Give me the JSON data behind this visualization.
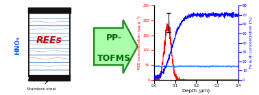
{
  "xlabel": "Depth (μm)",
  "ylabel_left": "REE concentration (μg·g⁻¹)",
  "ylabel_right": "Fe & Ni concentration (%)",
  "arrow_label_line1": "PP-",
  "arrow_label_line2": "TOFMS",
  "hno3_text": "HNO₃",
  "rees_text": "REEs",
  "steel_text": "Stainless steel",
  "xlim": [
    0,
    0.4
  ],
  "ylim_left": [
    0,
    250
  ],
  "ylim_right": [
    0,
    80
  ],
  "yticks_left": [
    0,
    50,
    100,
    150,
    200,
    250
  ],
  "yticks_right": [
    0,
    10,
    20,
    30,
    40,
    50,
    60,
    70,
    80
  ],
  "xticks": [
    0,
    0.1,
    0.2,
    0.3,
    0.4
  ],
  "red_color": "#FF0000",
  "blue_color": "#0000FF",
  "light_blue_color": "#4488FF",
  "arrow_fill": "#AAFFAA",
  "arrow_edge": "#228B22",
  "liquid_color": "#5588BB",
  "hno3_color": "#0055FF",
  "rees_color": "#CC0000",
  "steel_color": "#111111",
  "beaker_edge": "#222222",
  "beaker_fill": "#FFFFFF"
}
